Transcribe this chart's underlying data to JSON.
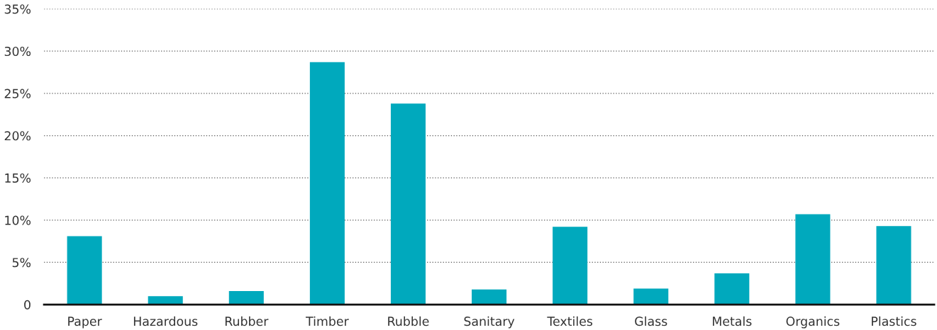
{
  "chart_data": {
    "type": "bar",
    "categories": [
      "Paper",
      "Hazardous",
      "Rubber",
      "Timber",
      "Rubble",
      "Sanitary",
      "Textiles",
      "Glass",
      "Metals",
      "Organics",
      "Plastics"
    ],
    "values": [
      8.1,
      1.0,
      1.6,
      28.7,
      23.8,
      1.8,
      9.2,
      1.9,
      3.7,
      10.7,
      9.3
    ],
    "color": "#00a9bd",
    "ylim": [
      0,
      35
    ],
    "yticks": [
      0,
      {
        "value": 5,
        "label": "5%"
      },
      {
        "value": 10,
        "label": "10%"
      },
      {
        "value": 15,
        "label": "15%"
      },
      {
        "value": 20,
        "label": "20%"
      },
      {
        "value": 25,
        "label": "25%"
      },
      {
        "value": 30,
        "label": "30%"
      },
      {
        "value": 35,
        "label": "35%"
      }
    ],
    "grid": "y"
  }
}
